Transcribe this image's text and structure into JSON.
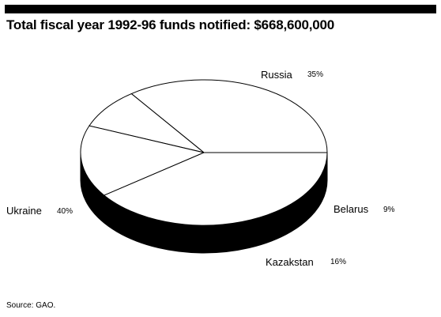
{
  "title": "Total fiscal year 1992-96 funds notified: $668,600,000",
  "source": "Source: GAO.",
  "chart_data": {
    "type": "pie",
    "style": "3d",
    "title": "Total fiscal year 1992-96 funds notified: $668,600,000",
    "slices": [
      {
        "label": "Russia",
        "value": 35,
        "pct_label": "35%"
      },
      {
        "label": "Belarus",
        "value": 9,
        "pct_label": "9%"
      },
      {
        "label": "Kazakstan",
        "value": 16,
        "pct_label": "16%"
      },
      {
        "label": "Ukraine",
        "value": 40,
        "pct_label": "40%"
      }
    ],
    "colors": {
      "top": "#ffffff",
      "side": "#000000",
      "stroke": "#000000"
    }
  }
}
